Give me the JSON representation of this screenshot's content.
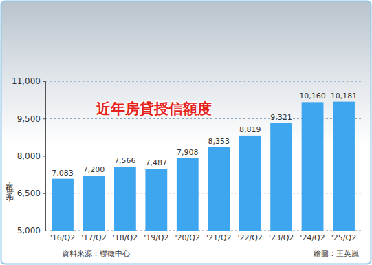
{
  "chart_data": {
    "type": "bar",
    "title": "近年房貸授信額度",
    "y_label": "單位：千元",
    "categories": [
      "'16/Q2",
      "'17/Q2",
      "'18/Q2",
      "'19/Q2",
      "'20/Q2",
      "'21/Q2",
      "'22/Q2",
      "'23/Q2",
      "'24/Q2",
      "'25/Q2"
    ],
    "values": [
      7083,
      7200,
      7566,
      7487,
      7908,
      8353,
      8819,
      9321,
      10160,
      10181
    ],
    "value_labels": [
      "7,083",
      "7,200",
      "7,566",
      "7,487",
      "7,908",
      "8,353",
      "8,819",
      "9,321",
      "10,160",
      "10,181"
    ],
    "color": "#3ea6ee",
    "ylim": [
      5000,
      11000
    ],
    "yticks": [
      {
        "value": 5000,
        "label": "5,000"
      },
      {
        "value": 6500,
        "label": "6,500"
      },
      {
        "value": 8000,
        "label": "8,000"
      },
      {
        "value": 9500,
        "label": "9,500"
      },
      {
        "value": 11000,
        "label": "11,000"
      }
    ],
    "grid": true,
    "data_labels": true,
    "annotations": [
      "資料來源：聯徵中心",
      "繪圖：王英嵐"
    ]
  }
}
